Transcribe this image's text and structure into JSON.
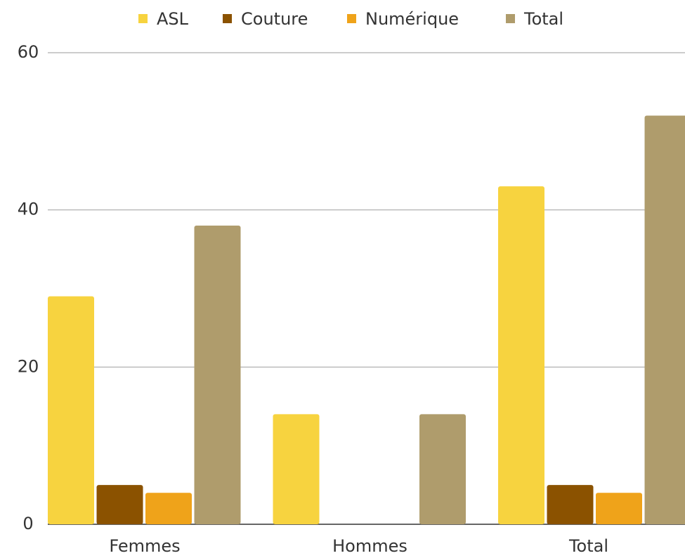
{
  "chart_data": {
    "type": "bar",
    "categories": [
      "Femmes",
      "Hommes",
      "Total"
    ],
    "series": [
      {
        "name": "ASL",
        "color": "#f7d33f",
        "values": [
          29,
          14,
          43
        ]
      },
      {
        "name": "Couture",
        "color": "#8b5200",
        "values": [
          5,
          0,
          5
        ]
      },
      {
        "name": "Numérique",
        "color": "#efa31a",
        "values": [
          4,
          0,
          4
        ]
      },
      {
        "name": "Total",
        "color": "#af9c6c",
        "values": [
          38,
          14,
          52
        ]
      }
    ],
    "ylim": [
      0,
      60
    ],
    "yticks": [
      0,
      20,
      40,
      60
    ],
    "grid": true,
    "legend": "top"
  }
}
